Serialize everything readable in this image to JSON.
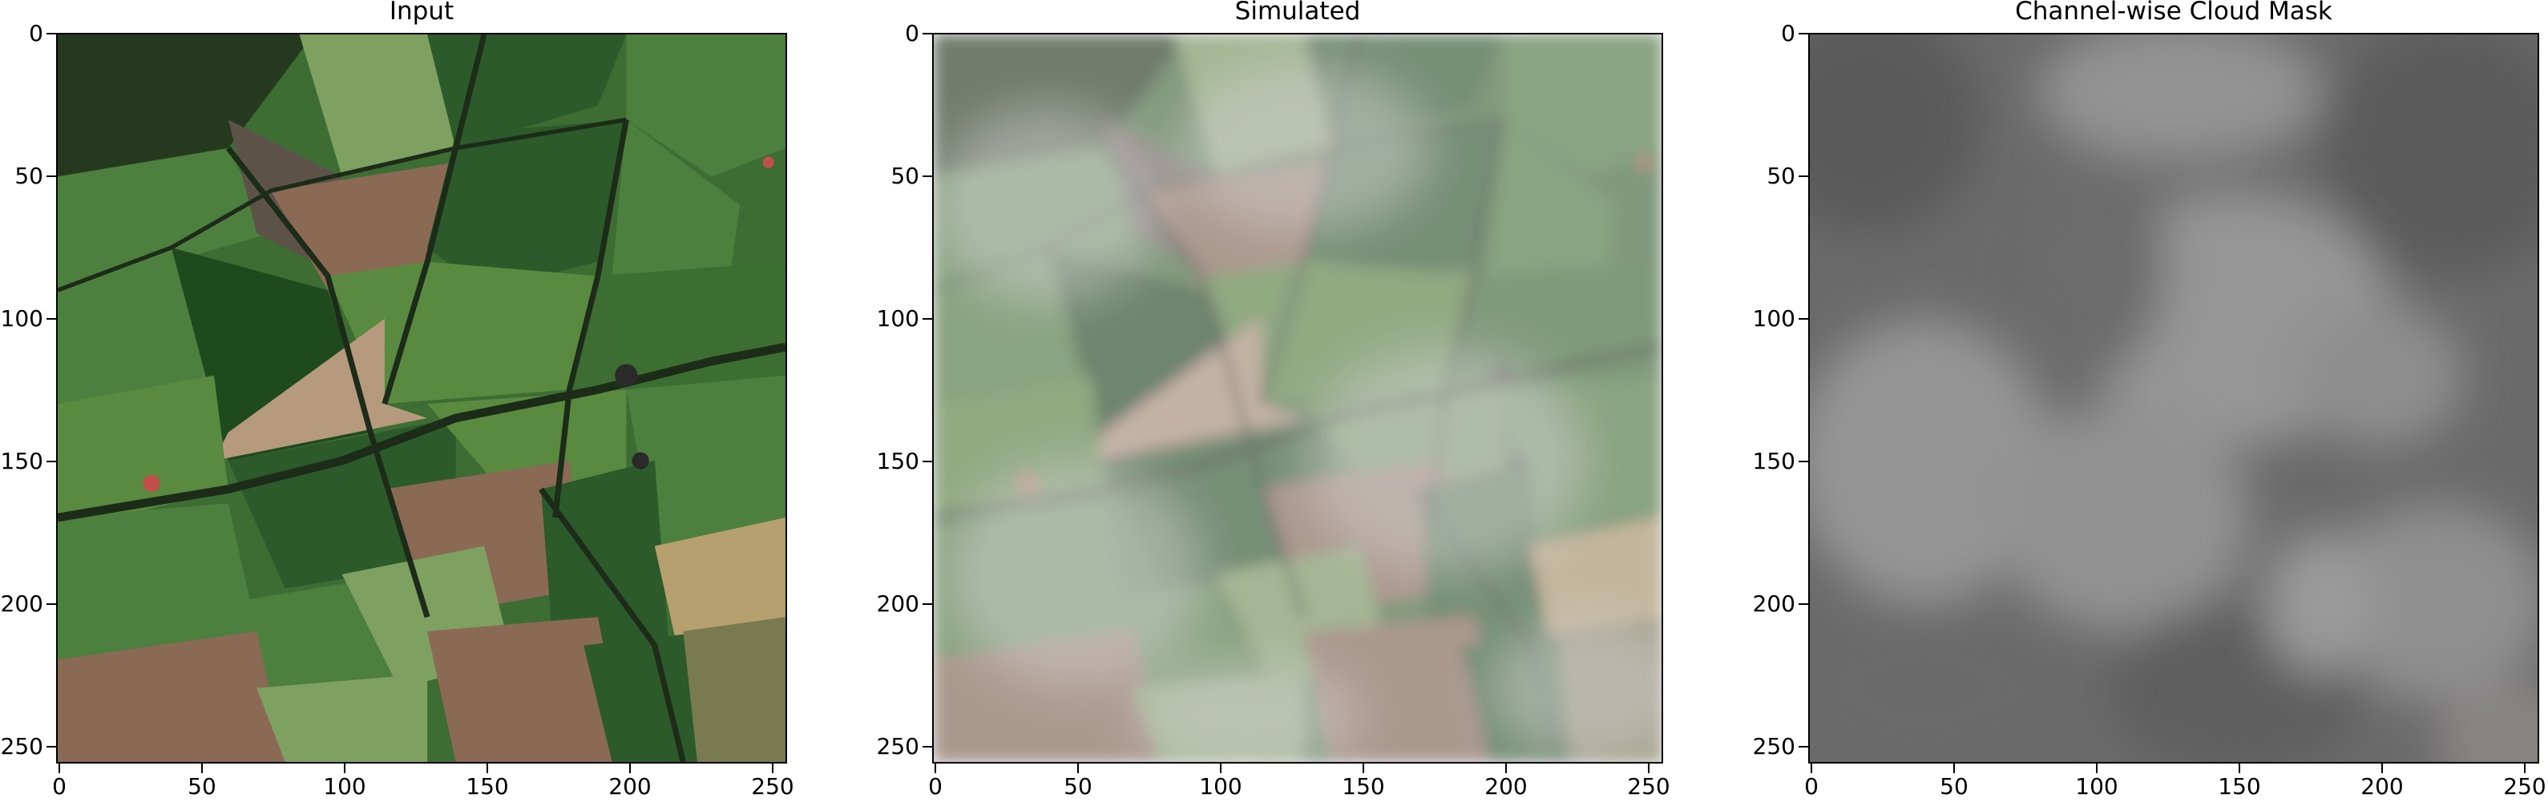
{
  "panels": [
    {
      "title": "Input"
    },
    {
      "title": "Simulated"
    },
    {
      "title": "Channel-wise Cloud Mask"
    }
  ],
  "axis": {
    "x_ticks": [
      "0",
      "50",
      "100",
      "150",
      "200",
      "250"
    ],
    "y_ticks": [
      "0",
      "50",
      "100",
      "150",
      "200",
      "250"
    ]
  },
  "colors": {
    "field_dark_green": "#2c5a2a",
    "field_green": "#4d7f3e",
    "field_light_green": "#7ea060",
    "field_brown": "#8a6a55",
    "field_tan": "#b69a7e",
    "hedge": "#1c2c18",
    "cloud_gray": "#8c8c8c",
    "cloud_dark": "#5c5c5c"
  }
}
